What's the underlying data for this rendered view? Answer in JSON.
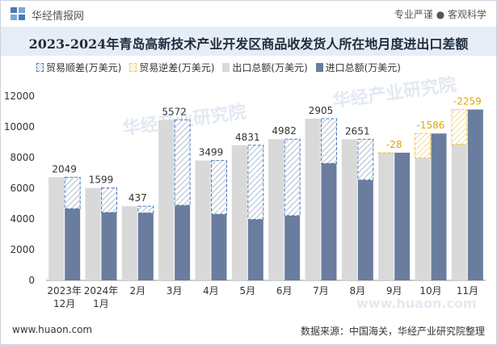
{
  "header": {
    "brand": "华经情报网",
    "tagline": "专业严谨 ● 客观科学"
  },
  "title": "2023-2024年青岛高新技术产业开发区商品收发货人所在地月度进出口差额",
  "legend": {
    "surplus": "贸易顺差(万美元)",
    "deficit": "贸易逆差(万美元)",
    "export": "出口总额(万美元)",
    "import": "进口总额(万美元)"
  },
  "colors": {
    "export": "#d9d9d9",
    "import": "#6a7d9e",
    "surplus_border": "#4a79b8",
    "deficit_border": "#f2c84b",
    "title_bg": "#e6edf6"
  },
  "watermarks": [
    "华经产业研究院",
    "华经产业研究院",
    "www.huaon.com"
  ],
  "chart_data": {
    "type": "bar",
    "categories": [
      [
        "2023年",
        "12月"
      ],
      [
        "2024年",
        "1月"
      ],
      [
        "2月"
      ],
      [
        "3月"
      ],
      [
        "4月"
      ],
      [
        "5月"
      ],
      [
        "6月"
      ],
      [
        "7月"
      ],
      [
        "8月"
      ],
      [
        "9月"
      ],
      [
        "10月"
      ],
      [
        "11月"
      ]
    ],
    "series": [
      {
        "name": "出口总额(万美元)",
        "values": [
          6720,
          6020,
          4830,
          10460,
          7810,
          8800,
          9200,
          10530,
          9190,
          8290,
          7980,
          8870
        ]
      },
      {
        "name": "进口总额(万美元)",
        "values": [
          4670,
          4420,
          4390,
          4890,
          4310,
          3970,
          4220,
          7620,
          6540,
          8318,
          9566,
          11129
        ]
      }
    ],
    "balance": {
      "labels": [
        "2049",
        "1599",
        "437",
        "5572",
        "3499",
        "4831",
        "4982",
        "2905",
        "2651",
        "-28",
        "-1586",
        "-2259"
      ],
      "values": [
        2049,
        1599,
        437,
        5572,
        3499,
        4831,
        4982,
        2905,
        2651,
        -28,
        -1586,
        -2259
      ]
    },
    "ylim": [
      0,
      12000
    ],
    "yticks": [
      0,
      2000,
      4000,
      6000,
      8000,
      10000,
      12000
    ],
    "grid": false
  },
  "footer": {
    "site": "www.huaon.com",
    "source": "数据来源：中国海关，华经产业研究院整理"
  }
}
